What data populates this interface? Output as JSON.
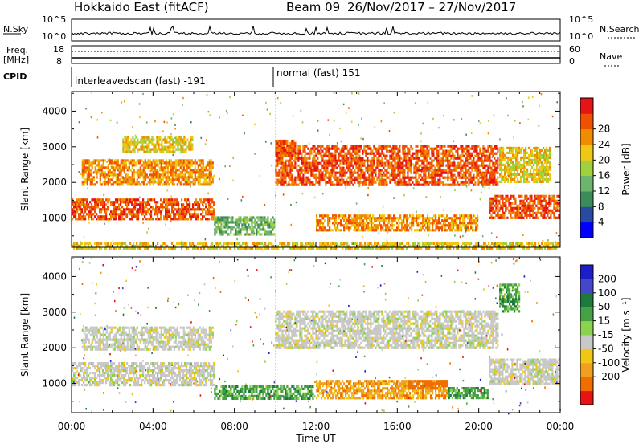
{
  "header": {
    "station": "Hokkaido East (fitACF)",
    "beam": "Beam 09",
    "dates": "26/Nov/2017 – 27/Nov/2017"
  },
  "strips": {
    "nsky_label": "N.Sky",
    "nsky_ticks": [
      "10^5",
      "10^0"
    ],
    "nsearch_ticks": [
      "10^5",
      "10^0"
    ],
    "nsearch_label": "N.Search",
    "freq_label_1": "Freq.",
    "freq_label_2": "[MHz]",
    "freq_ticks": [
      "18",
      "8"
    ],
    "nave_ticks": [
      "60",
      "0"
    ],
    "nave_label": "Nave",
    "cpid_label": "CPID",
    "cpid_1": "interleavedscan (fast) -191",
    "cpid_2": "normal (fast) 151"
  },
  "colors": {
    "power": [
      "#0000ff",
      "#2a4aa0",
      "#3c8c5a",
      "#6eb46e",
      "#a0d03c",
      "#f0c814",
      "#f08c00",
      "#f05000",
      "#e61414"
    ],
    "velocity": [
      "#1e1ec8",
      "#4646c8",
      "#1e7a3c",
      "#46a046",
      "#8cd250",
      "#c8c8c8",
      "#f0c814",
      "#f0a01e",
      "#f06e00",
      "#e61414"
    ]
  },
  "chart_data": [
    {
      "type": "heatmap",
      "title": "Power",
      "xlabel": "Time UT",
      "ylabel": "Slant Range [km]",
      "x_ticks": [
        "00:00",
        "04:00",
        "08:00",
        "12:00",
        "16:00",
        "20:00",
        "00:00"
      ],
      "y_ticks": [
        "1000",
        "2000",
        "3000",
        "4000"
      ],
      "colorbar_label": "Power [dB]",
      "colorbar_ticks": [
        "4",
        "8",
        "12",
        "16",
        "20",
        "24",
        "28"
      ],
      "regions": [
        {
          "t0": 0.0,
          "t1": 7.0,
          "r0": 950,
          "r1": 1550,
          "db": 28
        },
        {
          "t0": 0.5,
          "t1": 7.0,
          "r0": 1900,
          "r1": 2650,
          "db": 24
        },
        {
          "t0": 2.5,
          "t1": 6.0,
          "r0": 2800,
          "r1": 3300,
          "db": 20
        },
        {
          "t0": 10.0,
          "t1": 21.0,
          "r0": 1900,
          "r1": 3050,
          "db": 28
        },
        {
          "t0": 10.0,
          "t1": 11.0,
          "r0": 2700,
          "r1": 3200,
          "db": 28
        },
        {
          "t0": 12.0,
          "t1": 20.0,
          "r0": 650,
          "r1": 1100,
          "db": 24
        },
        {
          "t0": 20.5,
          "t1": 24.0,
          "r0": 950,
          "r1": 1650,
          "db": 28
        },
        {
          "t0": 21.0,
          "t1": 23.5,
          "r0": 2000,
          "r1": 3000,
          "db": 20
        },
        {
          "t0": 7.0,
          "t1": 10.0,
          "r0": 500,
          "r1": 1050,
          "db": 12
        },
        {
          "t0": 0.0,
          "t1": 24.0,
          "r0": 150,
          "r1": 320,
          "db": 20
        }
      ]
    },
    {
      "type": "heatmap",
      "title": "Velocity",
      "xlabel": "Time UT",
      "ylabel": "Slant Range [km]",
      "x_ticks": [
        "00:00",
        "04:00",
        "08:00",
        "12:00",
        "16:00",
        "20:00",
        "00:00"
      ],
      "y_ticks": [
        "1000",
        "2000",
        "3000",
        "4000"
      ],
      "colorbar_label": "Velocity [m s⁻¹]",
      "colorbar_ticks": [
        "200",
        "100",
        "50",
        "15",
        "-15",
        "-50",
        "-100",
        "-200"
      ],
      "regions": [
        {
          "t0": 0.0,
          "t1": 7.0,
          "r0": 950,
          "r1": 1600,
          "v": 0
        },
        {
          "t0": 0.5,
          "t1": 7.0,
          "r0": 1900,
          "r1": 2600,
          "v": 0
        },
        {
          "t0": 10.0,
          "t1": 21.0,
          "r0": 2000,
          "r1": 3050,
          "v": 0
        },
        {
          "t0": 20.5,
          "t1": 24.0,
          "r0": 950,
          "r1": 1700,
          "v": 0
        },
        {
          "t0": 7.0,
          "t1": 12.0,
          "r0": 550,
          "r1": 950,
          "v": 40
        },
        {
          "t0": 12.0,
          "t1": 18.5,
          "r0": 550,
          "r1": 1100,
          "v": -40
        },
        {
          "t0": 16.5,
          "t1": 18.5,
          "r0": 800,
          "r1": 1100,
          "v": -80
        },
        {
          "t0": 18.5,
          "t1": 20.5,
          "r0": 550,
          "r1": 900,
          "v": 40
        },
        {
          "t0": 21.0,
          "t1": 22.0,
          "r0": 3000,
          "r1": 3800,
          "v": 40
        }
      ]
    }
  ]
}
